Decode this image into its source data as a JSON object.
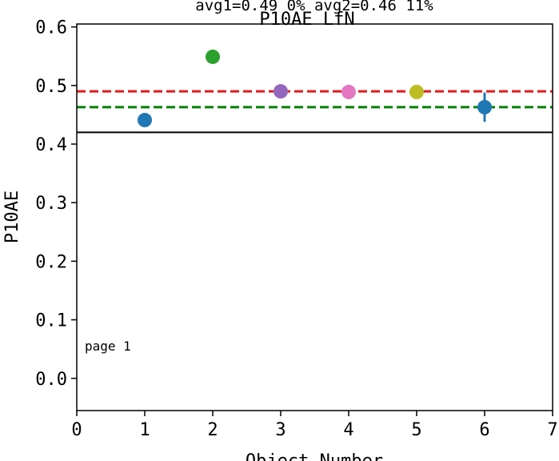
{
  "chart_data": {
    "type": "scatter",
    "title": "P10AE LfN",
    "subtitle": "avg1=0.49 0% avg2=0.46 11%",
    "xlabel": "Object Number",
    "ylabel": "P10AE",
    "xlim": [
      0,
      7
    ],
    "ylim": [
      -0.055,
      0.605
    ],
    "xticks": [
      "0",
      "1",
      "2",
      "3",
      "4",
      "5",
      "6",
      "7"
    ],
    "yticks": [
      "0.0",
      "0.1",
      "0.2",
      "0.3",
      "0.4",
      "0.5",
      "0.6"
    ],
    "points": [
      {
        "x": 1,
        "y": 0.441,
        "err": 0.004,
        "color": "#1f77b4"
      },
      {
        "x": 2,
        "y": 0.549,
        "err": 0.012,
        "color": "#2ca02c"
      },
      {
        "x": 3,
        "y": 0.49,
        "err": 0.004,
        "color": "#9467bd"
      },
      {
        "x": 4,
        "y": 0.489,
        "err": 0.012,
        "color": "#e377c2"
      },
      {
        "x": 5,
        "y": 0.489,
        "err": 0.012,
        "color": "#bcbd22"
      },
      {
        "x": 6,
        "y": 0.463,
        "err": 0.025,
        "color": "#1f77b4"
      }
    ],
    "hlines": [
      {
        "y": 0.49,
        "style": "dashed",
        "color": "#e31a1c"
      },
      {
        "y": 0.463,
        "style": "dashed",
        "color": "#008000"
      },
      {
        "y": 0.42,
        "style": "solid",
        "color": "#000000"
      }
    ],
    "annotation": "page 1",
    "grid": false
  }
}
